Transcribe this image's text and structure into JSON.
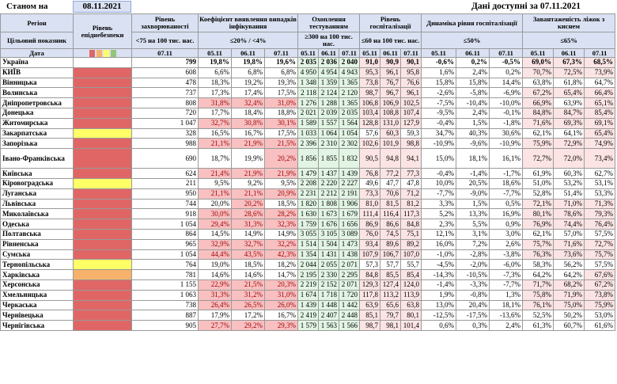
{
  "header": {
    "as_of_label": "Станом на",
    "as_of_date": "08.11.2021",
    "availability": "Дані доступні за  07.11.2021"
  },
  "columns": {
    "region": "Регіон",
    "target": "Цільовий показник",
    "date": "Дата",
    "level": "Рівень епіднебезпеки",
    "incidence": "Рівень захворюваності",
    "incidence_target": "<75 на 100 тис. нас.",
    "detect": "Коефіцієнт виявлення випадків інфікування",
    "detect_target": "≤20% / <4%",
    "testing": "Охоплення тестуванням",
    "testing_target": "≥300 на 100 тис. нас.",
    "hosp": "Рівень госпіталізації",
    "hosp_target": "≤60 на 100 тис. нас.",
    "dyn": "Динаміка рівня госпіталізації",
    "dyn_target": "≤50%",
    "oxy": "Завантаженість ліжок з киснем",
    "oxy_target": "≤65%"
  },
  "dates": {
    "incidence": "07.11",
    "triple": [
      "05.11",
      "06.11",
      "07.11"
    ]
  },
  "level_colors": {
    "red": "#e06666",
    "orange": "#f6b26b",
    "yellow": "#ffff66",
    "green": "#93c47d"
  },
  "rows": [
    {
      "region": "Україна",
      "level": "",
      "inc": "799",
      "det": [
        "19,8%",
        "19,8%",
        "19,6%"
      ],
      "test": [
        "2 035",
        "2 036",
        "2 040"
      ],
      "hosp": [
        "91,0",
        "90,9",
        "90,1"
      ],
      "dyn": [
        "-0,6%",
        "0,2%",
        "-0,5%"
      ],
      "oxy": [
        "69,0%",
        "67,3%",
        "68,5%"
      ]
    },
    {
      "region": "КИЇВ",
      "level": "red",
      "inc": "608",
      "det": [
        "6,6%",
        "6,8%",
        "6,8%"
      ],
      "test": [
        "4 950",
        "4 954",
        "4 943"
      ],
      "hosp": [
        "95,3",
        "96,1",
        "95,8"
      ],
      "dyn": [
        "1,6%",
        "2,4%",
        "0,2%"
      ],
      "oxy": [
        "70,7%",
        "72,5%",
        "73,9%"
      ]
    },
    {
      "region": "Вінницька",
      "level": "red",
      "inc": "478",
      "det": [
        "18,3%",
        "19,2%",
        "19,3%"
      ],
      "test": [
        "1 348",
        "1 359",
        "1 365"
      ],
      "hosp": [
        "73,8",
        "76,7",
        "76,6"
      ],
      "dyn": [
        "15,8%",
        "15,8%",
        "14,4%"
      ],
      "oxy": [
        "63,8%",
        "61,8%",
        "64,7%"
      ]
    },
    {
      "region": "Волинська",
      "level": "red",
      "inc": "737",
      "det": [
        "17,3%",
        "17,4%",
        "17,5%"
      ],
      "test": [
        "2 118",
        "2 124",
        "2 120"
      ],
      "hosp": [
        "98,7",
        "96,7",
        "96,1"
      ],
      "dyn": [
        "-2,6%",
        "-5,8%",
        "-6,9%"
      ],
      "oxy": [
        "67,2%",
        "65,4%",
        "66,4%"
      ]
    },
    {
      "region": "Дніпропетровська",
      "level": "red",
      "inc": "808",
      "det": [
        "31,8%",
        "32,4%",
        "31,0%"
      ],
      "test": [
        "1 276",
        "1 288",
        "1 365"
      ],
      "hosp": [
        "106,8",
        "106,9",
        "102,5"
      ],
      "dyn": [
        "-7,5%",
        "-10,4%",
        "-10,0%"
      ],
      "oxy": [
        "66,9%",
        "63,9%",
        "65,1%"
      ]
    },
    {
      "region": "Донецька",
      "level": "red",
      "inc": "720",
      "det": [
        "17,7%",
        "18,4%",
        "18,8%"
      ],
      "test": [
        "2 021",
        "2 039",
        "2 035"
      ],
      "hosp": [
        "103,4",
        "108,8",
        "107,4"
      ],
      "dyn": [
        "-9,5%",
        "2,4%",
        "-0,1%"
      ],
      "oxy": [
        "84,8%",
        "84,7%",
        "85,4%"
      ]
    },
    {
      "region": "Житомирська",
      "level": "red",
      "inc": "1 047",
      "det": [
        "32,7%",
        "30,8%",
        "30,1%"
      ],
      "test": [
        "1 589",
        "1 557",
        "1 564"
      ],
      "hosp": [
        "128,8",
        "131,0",
        "127,9"
      ],
      "dyn": [
        "-0,4%",
        "1,5%",
        "-1,8%"
      ],
      "oxy": [
        "71,6%",
        "69,3%",
        "69,1%"
      ]
    },
    {
      "region": "Закарпатська",
      "level": "yellow",
      "inc": "328",
      "det": [
        "16,5%",
        "16,7%",
        "17,5%"
      ],
      "test": [
        "1 033",
        "1 064",
        "1 054"
      ],
      "hosp": [
        "57,6",
        "60,3",
        "59,3"
      ],
      "dyn": [
        "34,7%",
        "40,3%",
        "30,6%"
      ],
      "oxy": [
        "62,1%",
        "64,1%",
        "65,4%"
      ]
    },
    {
      "region": "Запорізька",
      "level": "red",
      "inc": "988",
      "det": [
        "21,1%",
        "21,9%",
        "21,5%"
      ],
      "test": [
        "2 396",
        "2 310",
        "2 302"
      ],
      "hosp": [
        "102,6",
        "101,9",
        "98,8"
      ],
      "dyn": [
        "-10,9%",
        "-9,6%",
        "-10,9%"
      ],
      "oxy": [
        "75,9%",
        "72,9%",
        "74,9%"
      ]
    },
    {
      "region": "Івано-Франківська",
      "level": "red",
      "tall": true,
      "inc": "690",
      "det": [
        "18,7%",
        "19,9%",
        "20,2%"
      ],
      "test": [
        "1 856",
        "1 855",
        "1 832"
      ],
      "hosp": [
        "90,5",
        "94,8",
        "94,1"
      ],
      "dyn": [
        "15,0%",
        "18,1%",
        "16,1%"
      ],
      "oxy": [
        "72,7%",
        "72,0%",
        "73,4%"
      ]
    },
    {
      "region": "Київська",
      "level": "red",
      "inc": "624",
      "det": [
        "21,4%",
        "21,9%",
        "21,9%"
      ],
      "test": [
        "1 479",
        "1 437",
        "1 439"
      ],
      "hosp": [
        "76,8",
        "77,2",
        "77,3"
      ],
      "dyn": [
        "-0,4%",
        "-1,4%",
        "-1,7%"
      ],
      "oxy": [
        "61,9%",
        "60,3%",
        "62,7%"
      ]
    },
    {
      "region": "Кіровоградська",
      "level": "yellow",
      "inc": "211",
      "det": [
        "9,5%",
        "9,2%",
        "9,5%"
      ],
      "test": [
        "2 208",
        "2 220",
        "2 227"
      ],
      "hosp": [
        "49,6",
        "47,7",
        "47,8"
      ],
      "dyn": [
        "10,0%",
        "20,5%",
        "18,6%"
      ],
      "oxy": [
        "51,0%",
        "53,2%",
        "53,1%"
      ]
    },
    {
      "region": "Луганська",
      "level": "red",
      "inc": "950",
      "det": [
        "21,1%",
        "21,1%",
        "20,9%"
      ],
      "test": [
        "2 231",
        "2 212",
        "2 191"
      ],
      "hosp": [
        "73,3",
        "70,6",
        "71,2"
      ],
      "dyn": [
        "-7,7%",
        "-9,0%",
        "-7,7%"
      ],
      "oxy": [
        "52,8%",
        "51,4%",
        "53,3%"
      ]
    },
    {
      "region": "Львівська",
      "level": "red",
      "inc": "744",
      "det": [
        "20,0%",
        "20,2%",
        "18,5%"
      ],
      "test": [
        "1 820",
        "1 808",
        "1 906"
      ],
      "hosp": [
        "81,0",
        "81,5",
        "81,2"
      ],
      "dyn": [
        "3,3%",
        "1,5%",
        "0,5%"
      ],
      "oxy": [
        "72,1%",
        "71,0%",
        "71,3%"
      ]
    },
    {
      "region": "Миколаївська",
      "level": "red",
      "inc": "918",
      "det": [
        "30,0%",
        "28,6%",
        "28,2%"
      ],
      "test": [
        "1 630",
        "1 673",
        "1 679"
      ],
      "hosp": [
        "111,4",
        "116,4",
        "117,3"
      ],
      "dyn": [
        "5,2%",
        "13,3%",
        "16,9%"
      ],
      "oxy": [
        "80,1%",
        "78,6%",
        "79,3%"
      ]
    },
    {
      "region": "Одеська",
      "level": "red",
      "inc": "1 054",
      "det": [
        "29,4%",
        "31,3%",
        "32,3%"
      ],
      "test": [
        "1 759",
        "1 676",
        "1 656"
      ],
      "hosp": [
        "86,9",
        "86,6",
        "84,8"
      ],
      "dyn": [
        "2,3%",
        "5,5%",
        "0,9%"
      ],
      "oxy": [
        "76,9%",
        "74,4%",
        "76,4%"
      ]
    },
    {
      "region": "Полтавська",
      "level": "red",
      "inc": "864",
      "det": [
        "14,5%",
        "14,9%",
        "14,9%"
      ],
      "test": [
        "3 055",
        "3 105",
        "3 089"
      ],
      "hosp": [
        "76,0",
        "74,5",
        "75,1"
      ],
      "dyn": [
        "12,1%",
        "3,1%",
        "3,0%"
      ],
      "oxy": [
        "62,1%",
        "57,0%",
        "57,5%"
      ]
    },
    {
      "region": "Рівненська",
      "level": "red",
      "inc": "965",
      "det": [
        "32,9%",
        "32,7%",
        "32,2%"
      ],
      "test": [
        "1 514",
        "1 504",
        "1 473"
      ],
      "hosp": [
        "93,4",
        "89,6",
        "89,2"
      ],
      "dyn": [
        "16,0%",
        "7,2%",
        "2,6%"
      ],
      "oxy": [
        "75,7%",
        "71,6%",
        "72,7%"
      ]
    },
    {
      "region": "Сумська",
      "level": "red",
      "inc": "1 054",
      "det": [
        "44,4%",
        "43,5%",
        "42,3%"
      ],
      "test": [
        "1 354",
        "1 431",
        "1 438"
      ],
      "hosp": [
        "107,9",
        "106,7",
        "107,0"
      ],
      "dyn": [
        "-1,0%",
        "-2,8%",
        "-3,8%"
      ],
      "oxy": [
        "76,3%",
        "73,6%",
        "75,7%"
      ]
    },
    {
      "region": "Тернопільська",
      "level": "yellow",
      "inc": "764",
      "det": [
        "19,0%",
        "18,5%",
        "18,2%"
      ],
      "test": [
        "2 044",
        "2 055",
        "2 071"
      ],
      "hosp": [
        "57,3",
        "57,7",
        "55,7"
      ],
      "dyn": [
        "-4,5%",
        "-2,0%",
        "-6,0%"
      ],
      "oxy": [
        "58,3%",
        "56,2%",
        "57,5%"
      ]
    },
    {
      "region": "Харківська",
      "level": "orange",
      "inc": "781",
      "det": [
        "14,6%",
        "14,6%",
        "14,7%"
      ],
      "test": [
        "2 195",
        "2 330",
        "2 295"
      ],
      "hosp": [
        "84,8",
        "85,5",
        "85,4"
      ],
      "dyn": [
        "-14,3%",
        "-10,5%",
        "-7,3%"
      ],
      "oxy": [
        "64,2%",
        "64,2%",
        "67,6%"
      ]
    },
    {
      "region": "Херсонська",
      "level": "red",
      "inc": "1 155",
      "det": [
        "22,9%",
        "21,5%",
        "20,3%"
      ],
      "test": [
        "2 219",
        "2 152",
        "2 071"
      ],
      "hosp": [
        "129,3",
        "127,4",
        "124,0"
      ],
      "dyn": [
        "-1,4%",
        "-3,3%",
        "-7,7%"
      ],
      "oxy": [
        "71,7%",
        "68,2%",
        "67,2%"
      ]
    },
    {
      "region": "Хмельницька",
      "level": "red",
      "inc": "1 063",
      "det": [
        "31,3%",
        "31,2%",
        "31,0%"
      ],
      "test": [
        "1 674",
        "1 718",
        "1 720"
      ],
      "hosp": [
        "117,8",
        "113,2",
        "113,9"
      ],
      "dyn": [
        "1,9%",
        "-0,8%",
        "1,3%"
      ],
      "oxy": [
        "75,8%",
        "71,9%",
        "73,8%"
      ]
    },
    {
      "region": "Черкаська",
      "level": "red",
      "inc": "738",
      "det": [
        "26,4%",
        "26,5%",
        "26,0%"
      ],
      "test": [
        "1 439",
        "1 448",
        "1 442"
      ],
      "hosp": [
        "63,9",
        "65,6",
        "63,8"
      ],
      "dyn": [
        "13,0%",
        "20,4%",
        "18,1%"
      ],
      "oxy": [
        "76,1%",
        "75,0%",
        "75,9%"
      ]
    },
    {
      "region": "Чернівецька",
      "level": "red",
      "inc": "887",
      "det": [
        "17,9%",
        "17,2%",
        "16,7%"
      ],
      "test": [
        "2 419",
        "2 407",
        "2 448"
      ],
      "hosp": [
        "85,1",
        "79,7",
        "80,1"
      ],
      "dyn": [
        "-12,5%",
        "-17,5%",
        "-13,6%"
      ],
      "oxy": [
        "52,5%",
        "50,2%",
        "53,0%"
      ]
    },
    {
      "region": "Чернігівська",
      "level": "red",
      "inc": "905",
      "det": [
        "27,7%",
        "29,2%",
        "29,3%"
      ],
      "test": [
        "1 579",
        "1 563",
        "1 566"
      ],
      "hosp": [
        "98,7",
        "98,1",
        "101,4"
      ],
      "dyn": [
        "0,6%",
        "0,3%",
        "2,4%"
      ],
      "oxy": [
        "61,3%",
        "60,7%",
        "61,6%"
      ]
    }
  ]
}
